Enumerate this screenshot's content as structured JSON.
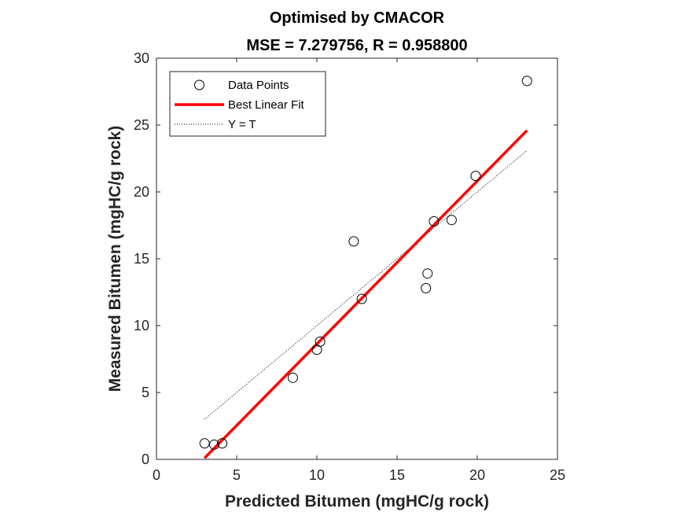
{
  "chart_data": {
    "type": "scatter",
    "title": "Optimised by CMACOR",
    "subtitle": "MSE = 7.279756, R = 0.958800",
    "xlabel": "Predicted Bitumen (mgHC/g rock)",
    "ylabel": "Measured Bitumen (mgHC/g rock)",
    "xlim": [
      0,
      25
    ],
    "ylim": [
      0,
      30
    ],
    "xticks": [
      0,
      5,
      10,
      15,
      20,
      25
    ],
    "yticks": [
      0,
      5,
      10,
      15,
      20,
      25,
      30
    ],
    "grid": false,
    "legend_position": "top-left",
    "series": [
      {
        "name": "Data Points",
        "kind": "markers",
        "marker": "open-circle",
        "color": "#000000",
        "x": [
          3.0,
          3.6,
          4.1,
          8.5,
          10.0,
          10.2,
          12.3,
          12.8,
          16.8,
          16.9,
          17.3,
          18.4,
          19.9,
          23.1
        ],
        "y": [
          1.2,
          1.1,
          1.2,
          6.1,
          8.2,
          8.8,
          16.3,
          12.0,
          12.8,
          13.9,
          17.8,
          17.9,
          21.2,
          28.3
        ]
      },
      {
        "name": "Best Linear Fit",
        "kind": "line",
        "color": "#ff0000",
        "x": [
          3.0,
          23.1
        ],
        "y": [
          0.1,
          24.6
        ]
      },
      {
        "name": "Y = T",
        "kind": "dotted-line",
        "color": "#000000",
        "x": [
          3.0,
          23.1
        ],
        "y": [
          3.0,
          23.1
        ]
      }
    ]
  }
}
